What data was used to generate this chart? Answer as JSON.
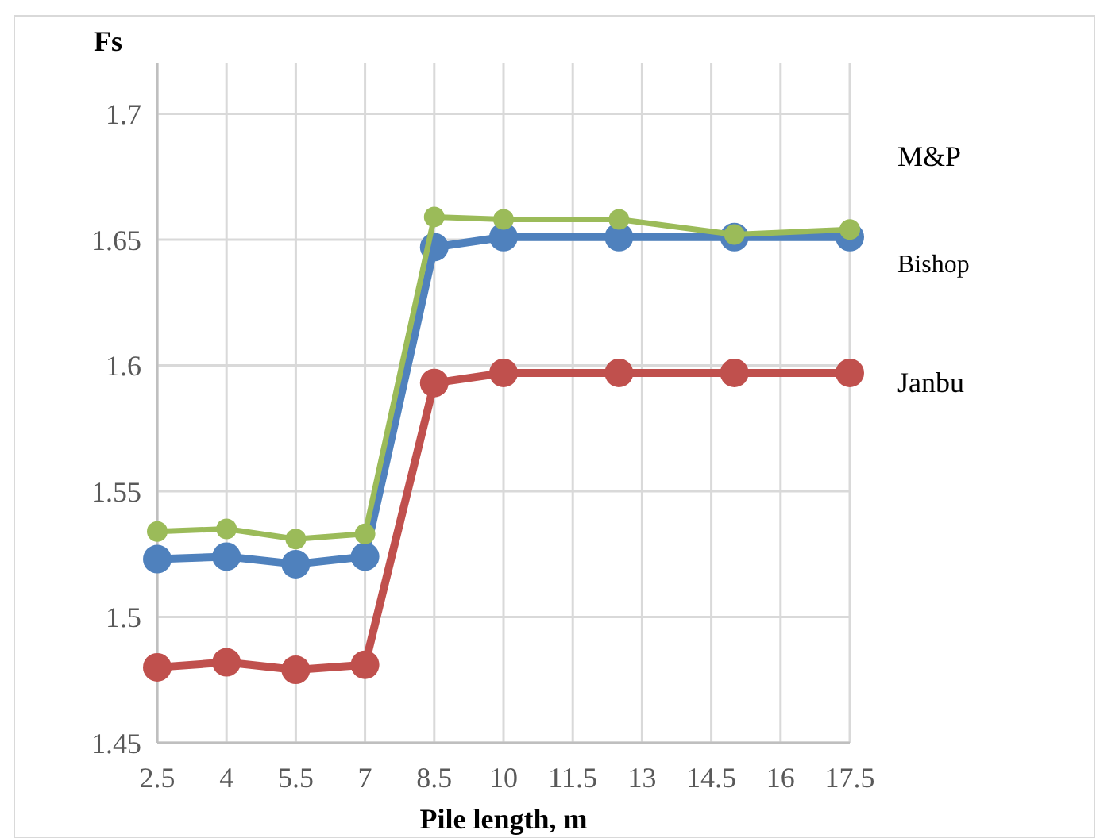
{
  "chart_data": {
    "type": "line",
    "xlabel": "Pile length, m",
    "ylabel": "Fs",
    "x": [
      2.5,
      4,
      5.5,
      7,
      8.5,
      10,
      12.5,
      15,
      17.5
    ],
    "series": [
      {
        "name": "Janbu",
        "color": "#c0504d",
        "values": [
          1.48,
          1.482,
          1.479,
          1.481,
          1.593,
          1.597,
          1.597,
          1.597,
          1.597
        ]
      },
      {
        "name": "Bishop",
        "color": "#4f81bd",
        "values": [
          1.523,
          1.524,
          1.521,
          1.524,
          1.647,
          1.651,
          1.651,
          1.651,
          1.651
        ]
      },
      {
        "name": "M&P",
        "color": "#9bbb59",
        "values": [
          1.534,
          1.535,
          1.531,
          1.533,
          1.659,
          1.658,
          1.658,
          1.652,
          1.654
        ]
      }
    ],
    "xlim": [
      2.5,
      17.5
    ],
    "xticks": [
      2.5,
      4,
      5.5,
      7,
      8.5,
      10,
      11.5,
      13,
      14.5,
      16,
      17.5
    ],
    "ylim": [
      1.45,
      1.72
    ],
    "yticks": [
      1.45,
      1.5,
      1.55,
      1.6,
      1.65,
      1.7
    ],
    "grid": true,
    "marker": "circle",
    "line_style": "solid",
    "legend": false
  }
}
